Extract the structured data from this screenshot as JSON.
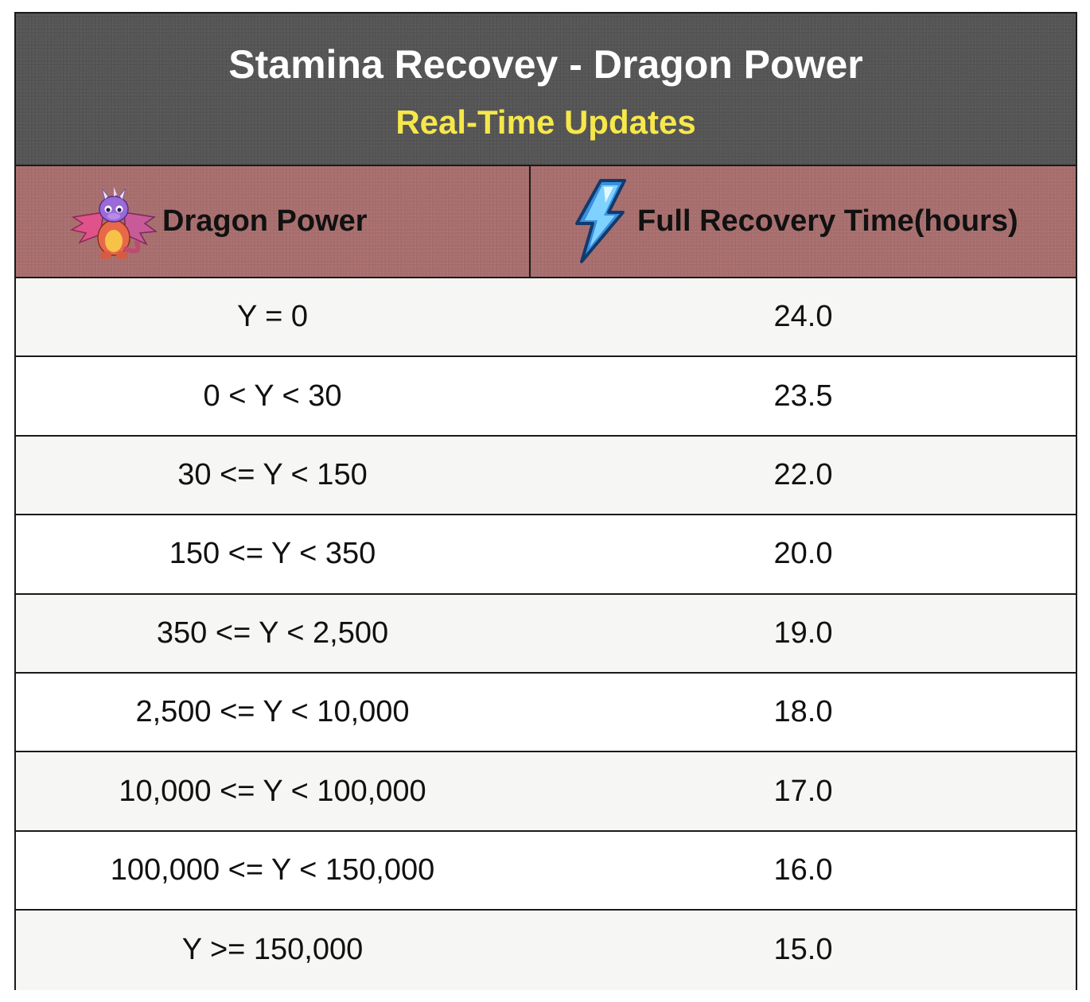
{
  "title": "Stamina Recovey - Dragon Power",
  "subtitle": "Real-Time Updates",
  "colors": {
    "banner_bg": "#555555",
    "title": "#ffffff",
    "subtitle": "#f6e84a",
    "header_bg": "#a86e6e",
    "row_alt": "#f6f6f4",
    "border": "#1a1a1a"
  },
  "columns": [
    {
      "label": "Dragon Power",
      "icon": "dragon-icon"
    },
    {
      "label": "Full Recovery Time(hours)",
      "icon": "lightning-bolt-icon"
    }
  ],
  "rows": [
    {
      "power": "Y = 0",
      "hours": "24.0"
    },
    {
      "power": "0 < Y < 30",
      "hours": "23.5"
    },
    {
      "power": "30 <= Y < 150",
      "hours": "22.0"
    },
    {
      "power": "150 <= Y < 350",
      "hours": "20.0"
    },
    {
      "power": "350 <= Y < 2,500",
      "hours": "19.0"
    },
    {
      "power": "2,500 <= Y < 10,000",
      "hours": "18.0"
    },
    {
      "power": "10,000 <= Y < 100,000",
      "hours": "17.0"
    },
    {
      "power": "100,000 <= Y < 150,000",
      "hours": "16.0"
    },
    {
      "power": "Y >= 150,000",
      "hours": "15.0"
    }
  ]
}
